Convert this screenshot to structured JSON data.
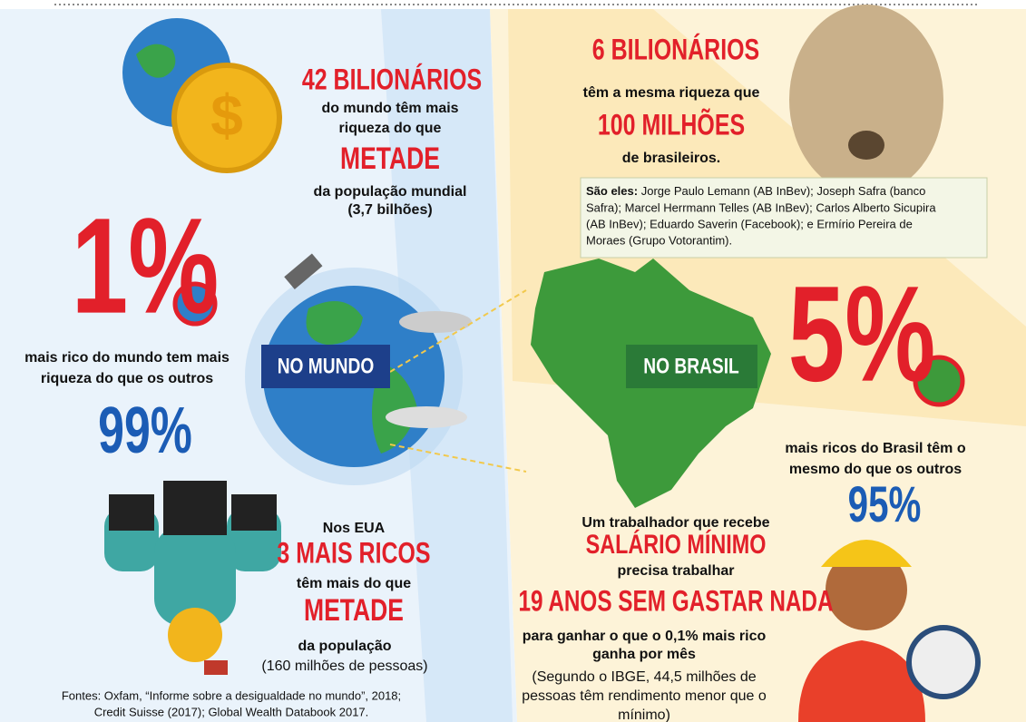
{
  "world": {
    "label": "NO MUNDO",
    "billionaires": {
      "headline": "42 BILIONÁRIOS",
      "lines": [
        "do mundo têm mais",
        "riqueza do que"
      ],
      "big": "METADE",
      "lines_after": [
        "da população mundial",
        "(3,7 bilhões)"
      ]
    },
    "one_percent": {
      "big": "1%",
      "lines": [
        "mais rico do mundo tem mais",
        "riqueza do que os outros"
      ],
      "other": "99%"
    },
    "usa": {
      "intro": "Nos EUA",
      "headline": "3 MAIS RICOS",
      "text": "têm mais do que",
      "big": "METADE",
      "text_after": "da população",
      "note": "(160 milhões de pessoas)"
    }
  },
  "brazil": {
    "label": "NO BRASIL",
    "billionaires": {
      "headline": "6 BILIONÁRIOS",
      "text": "têm a mesma riqueza que",
      "big": "100 MILHÕES",
      "text_after": "de brasileiros."
    },
    "names": {
      "label": "São eles:",
      "lines": [
        "Jorge Paulo Lemann (AB InBev); Joseph Safra (banco",
        "Safra); Marcel Herrmann Telles (AB InBev); Carlos Alberto Sicupira",
        "(AB InBev); Eduardo Saverin (Facebook); e Ermírio Pereira de",
        "Moraes (Grupo Votorantim)."
      ]
    },
    "five_percent": {
      "big": "5%",
      "lines": [
        "mais ricos do Brasil têm o",
        "mesmo do que os outros"
      ],
      "other": "95%"
    },
    "worker": {
      "intro": "Um trabalhador que recebe",
      "headline": "SALÁRIO MÍNIMO",
      "text": "precisa trabalhar",
      "big": "19 ANOS SEM GASTAR NADA",
      "lines_after": [
        "para ganhar o que o 0,1% mais rico",
        "ganha por mês"
      ],
      "note": [
        "(Segundo o IBGE, 44,5 milhões de",
        "pessoas têm rendimento menor que o",
        "mínimo)"
      ]
    }
  },
  "sources": [
    "Fontes: Oxfam, “Informe sobre a desigualdade no mundo”, 2018;",
    "Credit Suisse (2017); Global Wealth Databook 2017."
  ]
}
